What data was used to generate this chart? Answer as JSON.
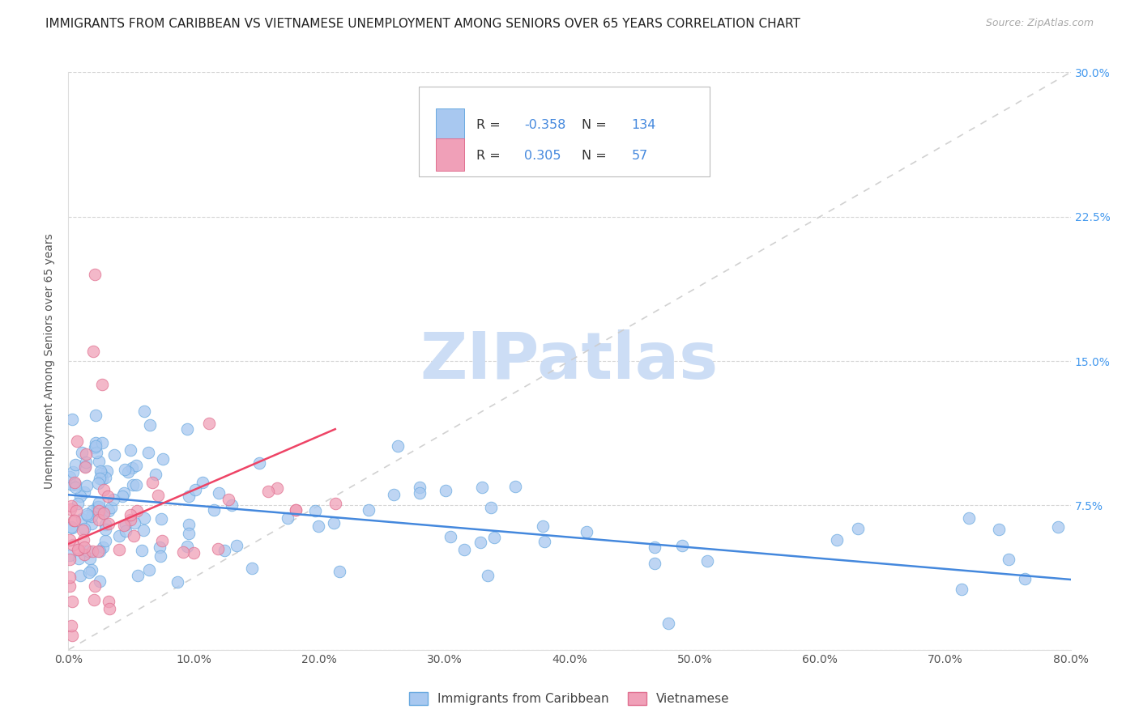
{
  "title": "IMMIGRANTS FROM CARIBBEAN VS VIETNAMESE UNEMPLOYMENT AMONG SENIORS OVER 65 YEARS CORRELATION CHART",
  "source": "Source: ZipAtlas.com",
  "ylabel": "Unemployment Among Seniors over 65 years",
  "xlim": [
    0.0,
    0.8
  ],
  "ylim": [
    0.0,
    0.3
  ],
  "legend_R1": "-0.358",
  "legend_N1": "134",
  "legend_R2": "0.305",
  "legend_N2": "57",
  "color_caribbean": "#a8c8f0",
  "color_caribbean_edge": "#6aaae0",
  "color_vietnamese": "#f0a0b8",
  "color_vietnamese_edge": "#e07090",
  "color_trend_caribbean": "#4488dd",
  "color_trend_vietnamese": "#ee4466",
  "color_diag": "#cccccc",
  "watermark": "ZIPatlas",
  "watermark_color": "#ccddf5",
  "background_color": "#ffffff",
  "title_fontsize": 11,
  "label_fontsize": 10,
  "tick_fontsize": 10,
  "right_tick_color": "#4499ee",
  "legend_text_color": "#333333",
  "legend_value_color": "#4488dd"
}
